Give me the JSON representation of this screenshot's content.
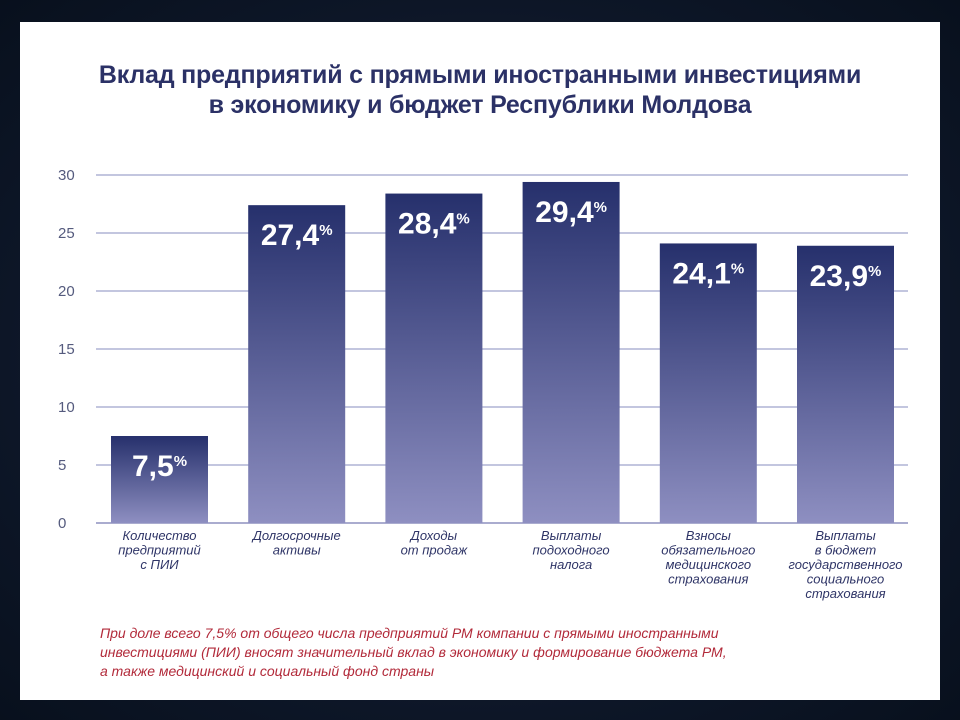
{
  "chart_data": {
    "type": "bar",
    "title_lines": [
      "Вклад предприятий с прямыми иностранными инвестициями",
      "в экономику и бюджет Республики Молдова"
    ],
    "ylim": [
      0,
      30
    ],
    "yticks": [
      "0",
      "5",
      "10",
      "15",
      "20",
      "25",
      "30"
    ],
    "grid": true,
    "categories": [
      [
        "Количество",
        "предприятий",
        "с ПИИ"
      ],
      [
        "Долгосрочные",
        "активы"
      ],
      [
        "Доходы",
        "от продаж"
      ],
      [
        "Выплаты",
        "подоходного",
        "налога"
      ],
      [
        "Взносы",
        "обязательного",
        "медицинского",
        "страхования"
      ],
      [
        "Выплаты",
        "в бюджет",
        "государственного",
        "социального",
        "страхования"
      ]
    ],
    "values": [
      7.5,
      27.4,
      28.4,
      29.4,
      24.1,
      23.9
    ],
    "data_labels": [
      {
        "main": "7,",
        "dec": "5",
        "unit": "%"
      },
      {
        "main": "27,",
        "dec": "4",
        "unit": "%"
      },
      {
        "main": "28,",
        "dec": "4",
        "unit": "%"
      },
      {
        "main": "29,",
        "dec": "4",
        "unit": "%"
      },
      {
        "main": "24,",
        "dec": "1",
        "unit": "%"
      },
      {
        "main": "23,",
        "dec": "9",
        "unit": "%"
      }
    ],
    "colors": {
      "bar_top": "#26306c",
      "bar_bottom": "#8e8fc1",
      "title": "#2b3166",
      "note": "#b22a3a"
    }
  },
  "note_lines": [
    "При доле всего 7,5% от общего числа предприятий РМ компании с прямыми иностранными",
    "инвестициями (ПИИ) вносят значительный вклад в экономику и формирование бюджета РМ,",
    "а также медицинский и социальный фонд страны"
  ]
}
